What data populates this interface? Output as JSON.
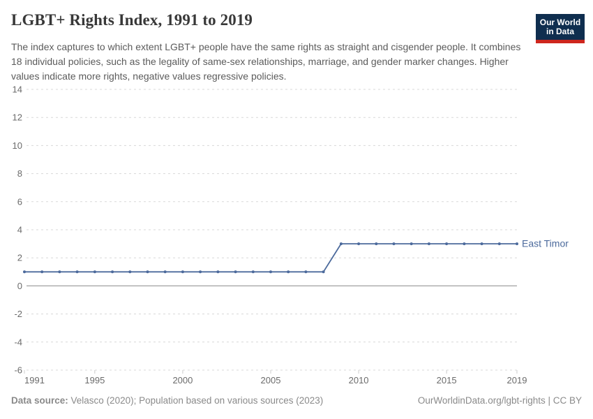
{
  "header": {
    "title": "LGBT+ Rights Index, 1991 to 2019",
    "subtitle": "The index captures to which extent LGBT+ people have the same rights as straight and cisgender people. It combines 18 individual policies, such as the legality of same-sex relationships, marriage, and gender marker changes. Higher values indicate more rights, negative values regressive policies.",
    "logo": {
      "line1": "Our World",
      "line2": "in Data",
      "background_color": "#0f2e4f",
      "accent_color": "#ce261e"
    }
  },
  "chart_data": {
    "type": "line",
    "title": "LGBT+ Rights Index, 1991 to 2019",
    "xlabel": "",
    "ylabel": "",
    "xlim": [
      1991,
      2019
    ],
    "ylim": [
      -6,
      14
    ],
    "x_ticks": [
      1991,
      1995,
      2000,
      2005,
      2010,
      2015,
      2019
    ],
    "y_ticks": [
      14,
      12,
      10,
      8,
      6,
      4,
      2,
      0,
      -2,
      -4,
      -6
    ],
    "grid": "horizontal-dashed",
    "legend_position": "end-of-line-label",
    "x": [
      1991,
      1992,
      1993,
      1994,
      1995,
      1996,
      1997,
      1998,
      1999,
      2000,
      2001,
      2002,
      2003,
      2004,
      2005,
      2006,
      2007,
      2008,
      2009,
      2010,
      2011,
      2012,
      2013,
      2014,
      2015,
      2016,
      2017,
      2018,
      2019
    ],
    "series": [
      {
        "name": "East Timor",
        "color": "#4c6a9c",
        "values": [
          1,
          1,
          1,
          1,
          1,
          1,
          1,
          1,
          1,
          1,
          1,
          1,
          1,
          1,
          1,
          1,
          1,
          1,
          3,
          3,
          3,
          3,
          3,
          3,
          3,
          3,
          3,
          3,
          3
        ]
      }
    ]
  },
  "footer": {
    "source_label": "Data source:",
    "source_rest": " Velasco (2020); Population based on various sources (2023)",
    "credit": "OurWorldinData.org/lgbt-rights | CC BY"
  },
  "colors": {
    "gridline": "#d8d8d8",
    "zero_line": "#a0a0a0",
    "axis_tick": "#cccccc",
    "tick_label": "#6b6b6b",
    "title_text": "#383838",
    "subtitle_text": "#5b5b5b",
    "footer_text": "#8a8a8a",
    "background": "#ffffff"
  }
}
